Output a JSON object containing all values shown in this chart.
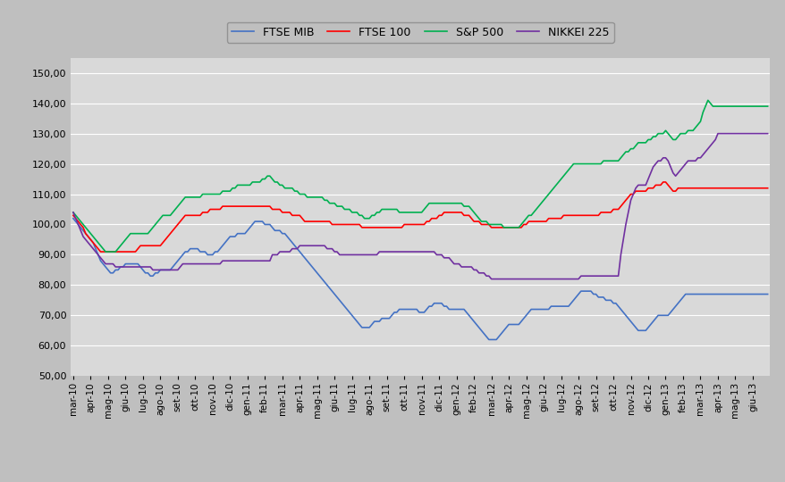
{
  "labels": [
    "mar-10",
    "apr-10",
    "mag-10",
    "giu-10",
    "lug-10",
    "ago-10",
    "set-10",
    "ott-10",
    "nov-10",
    "dic-10",
    "gen-11",
    "feb-11",
    "mar-11",
    "apr-11",
    "mag-11",
    "giu-11",
    "lug-11",
    "ago-11",
    "set-11",
    "ott-11",
    "nov-11",
    "dic-11",
    "gen-12",
    "feb-12",
    "mar-12",
    "apr-12",
    "mag-12",
    "giu-12",
    "lug-12",
    "ago-12",
    "set-12",
    "ott-12",
    "nov-12",
    "dic-12",
    "gen-13",
    "feb-13",
    "mar-13",
    "apr-13",
    "mag-13",
    "giu-13"
  ],
  "ftse_mib": [
    102,
    101,
    100,
    99,
    98,
    97,
    96,
    95,
    94,
    92,
    90,
    88,
    87,
    86,
    85,
    84,
    84,
    85,
    85,
    86,
    86,
    87,
    87,
    87,
    87,
    87,
    87,
    86,
    85,
    84,
    84,
    83,
    83,
    84,
    84,
    85,
    85,
    85,
    85,
    85,
    86,
    87,
    88,
    89,
    90,
    91,
    91,
    92,
    92,
    92,
    92,
    91,
    91,
    91,
    90,
    90,
    90,
    91,
    91,
    92,
    93,
    94,
    95,
    96,
    96,
    96,
    97,
    97,
    97,
    97,
    98,
    99,
    100,
    101,
    101,
    101,
    101,
    100,
    100,
    100,
    99,
    98,
    98,
    98,
    97,
    97,
    96,
    95,
    94,
    93,
    92,
    91,
    90,
    89,
    88,
    87,
    86,
    85,
    84,
    83,
    82,
    81,
    80,
    79,
    78,
    77,
    76,
    75,
    74,
    73,
    72,
    71,
    70,
    69,
    68,
    67,
    66,
    66,
    66,
    66,
    67,
    68,
    68,
    68,
    69,
    69,
    69,
    69,
    70,
    71,
    71,
    72,
    72,
    72,
    72,
    72,
    72,
    72,
    72,
    71,
    71,
    71,
    72,
    73,
    73,
    74,
    74,
    74,
    74,
    73,
    73,
    72,
    72,
    72,
    72,
    72,
    72,
    72,
    71,
    70,
    69,
    68,
    67,
    66,
    65,
    64,
    63,
    62,
    62,
    62,
    62,
    63,
    64,
    65,
    66,
    67,
    67,
    67,
    67,
    67,
    68,
    69,
    70,
    71,
    72,
    72,
    72,
    72,
    72,
    72,
    72,
    72,
    73,
    73,
    73,
    73,
    73,
    73,
    73,
    73,
    74,
    75,
    76,
    77,
    78,
    78,
    78,
    78,
    78,
    77,
    77,
    76,
    76,
    76,
    75,
    75,
    75,
    74,
    74,
    73,
    72,
    71,
    70,
    69,
    68,
    67,
    66,
    65,
    65,
    65,
    65,
    66,
    67,
    68,
    69,
    70,
    70,
    70,
    70,
    70,
    71,
    72,
    73,
    74,
    75,
    76,
    77,
    77,
    77,
    77,
    77,
    77,
    77,
    77,
    77,
    77,
    77,
    77,
    77,
    77
  ],
  "ftse_100": [
    103,
    102,
    101,
    100,
    99,
    97,
    96,
    95,
    94,
    93,
    92,
    91,
    91,
    91,
    91,
    91,
    91,
    91,
    91,
    91,
    91,
    91,
    91,
    91,
    91,
    91,
    92,
    93,
    93,
    93,
    93,
    93,
    93,
    93,
    93,
    93,
    94,
    95,
    96,
    97,
    98,
    99,
    100,
    101,
    102,
    103,
    103,
    103,
    103,
    103,
    103,
    103,
    104,
    104,
    104,
    105,
    105,
    105,
    105,
    105,
    106,
    106,
    106,
    106,
    106,
    106,
    106,
    106,
    106,
    106,
    106,
    106,
    106,
    106,
    106,
    106,
    106,
    106,
    106,
    106,
    105,
    105,
    105,
    105,
    104,
    104,
    104,
    104,
    103,
    103,
    103,
    103,
    102,
    101,
    101,
    101,
    101,
    101,
    101,
    101,
    101,
    101,
    101,
    101,
    100,
    100,
    100,
    100,
    100,
    100,
    100,
    100,
    100,
    100,
    100,
    100,
    99,
    99,
    99,
    99,
    99,
    99,
    99,
    99,
    99,
    99,
    99,
    99,
    99,
    99,
    99,
    99,
    99,
    100,
    100,
    100,
    100,
    100,
    100,
    100,
    100,
    100,
    101,
    101,
    102,
    102,
    102,
    103,
    103,
    104,
    104,
    104,
    104,
    104,
    104,
    104,
    104,
    103,
    103,
    103,
    102,
    101,
    101,
    101,
    100,
    100,
    100,
    100,
    99,
    99,
    99,
    99,
    99,
    99,
    99,
    99,
    99,
    99,
    99,
    99,
    99,
    100,
    100,
    101,
    101,
    101,
    101,
    101,
    101,
    101,
    101,
    102,
    102,
    102,
    102,
    102,
    102,
    103,
    103,
    103,
    103,
    103,
    103,
    103,
    103,
    103,
    103,
    103,
    103,
    103,
    103,
    103,
    104,
    104,
    104,
    104,
    104,
    105,
    105,
    105,
    106,
    107,
    108,
    109,
    110,
    110,
    111,
    111,
    111,
    111,
    111,
    112,
    112,
    112,
    113,
    113,
    113,
    114,
    114,
    113,
    112,
    111,
    111,
    112,
    112,
    112,
    112,
    112,
    112,
    112,
    112,
    112,
    112,
    112,
    112,
    112,
    112,
    112,
    112,
    112
  ],
  "sp500": [
    104,
    103,
    102,
    101,
    100,
    99,
    98,
    97,
    96,
    95,
    94,
    93,
    92,
    91,
    91,
    91,
    91,
    91,
    92,
    93,
    94,
    95,
    96,
    97,
    97,
    97,
    97,
    97,
    97,
    97,
    97,
    98,
    99,
    100,
    101,
    102,
    103,
    103,
    103,
    103,
    104,
    105,
    106,
    107,
    108,
    109,
    109,
    109,
    109,
    109,
    109,
    109,
    110,
    110,
    110,
    110,
    110,
    110,
    110,
    110,
    111,
    111,
    111,
    111,
    112,
    112,
    113,
    113,
    113,
    113,
    113,
    113,
    114,
    114,
    114,
    114,
    115,
    115,
    116,
    116,
    115,
    114,
    114,
    113,
    113,
    112,
    112,
    112,
    112,
    111,
    111,
    110,
    110,
    110,
    109,
    109,
    109,
    109,
    109,
    109,
    109,
    108,
    108,
    107,
    107,
    107,
    106,
    106,
    106,
    105,
    105,
    105,
    104,
    104,
    104,
    103,
    103,
    102,
    102,
    102,
    103,
    103,
    104,
    104,
    105,
    105,
    105,
    105,
    105,
    105,
    105,
    104,
    104,
    104,
    104,
    104,
    104,
    104,
    104,
    104,
    104,
    105,
    106,
    107,
    107,
    107,
    107,
    107,
    107,
    107,
    107,
    107,
    107,
    107,
    107,
    107,
    107,
    106,
    106,
    106,
    105,
    104,
    103,
    102,
    101,
    101,
    101,
    100,
    100,
    100,
    100,
    100,
    100,
    99,
    99,
    99,
    99,
    99,
    99,
    99,
    100,
    101,
    102,
    103,
    103,
    104,
    105,
    106,
    107,
    108,
    109,
    110,
    111,
    112,
    113,
    114,
    115,
    116,
    117,
    118,
    119,
    120,
    120,
    120,
    120,
    120,
    120,
    120,
    120,
    120,
    120,
    120,
    120,
    121,
    121,
    121,
    121,
    121,
    121,
    121,
    122,
    123,
    124,
    124,
    125,
    125,
    126,
    127,
    127,
    127,
    127,
    128,
    128,
    129,
    129,
    130,
    130,
    130,
    131,
    130,
    129,
    128,
    128,
    129,
    130,
    130,
    130,
    131,
    131,
    131,
    132,
    133,
    134,
    137,
    139,
    141,
    140,
    139,
    139,
    139
  ],
  "nikkei": [
    104,
    102,
    100,
    98,
    96,
    95,
    94,
    93,
    92,
    91,
    90,
    89,
    88,
    87,
    87,
    87,
    87,
    86,
    86,
    86,
    86,
    86,
    86,
    86,
    86,
    86,
    86,
    86,
    86,
    86,
    86,
    86,
    85,
    85,
    85,
    85,
    85,
    85,
    85,
    85,
    85,
    85,
    85,
    86,
    87,
    87,
    87,
    87,
    87,
    87,
    87,
    87,
    87,
    87,
    87,
    87,
    87,
    87,
    87,
    87,
    88,
    88,
    88,
    88,
    88,
    88,
    88,
    88,
    88,
    88,
    88,
    88,
    88,
    88,
    88,
    88,
    88,
    88,
    88,
    88,
    90,
    90,
    90,
    91,
    91,
    91,
    91,
    91,
    92,
    92,
    92,
    93,
    93,
    93,
    93,
    93,
    93,
    93,
    93,
    93,
    93,
    93,
    92,
    92,
    92,
    91,
    91,
    90,
    90,
    90,
    90,
    90,
    90,
    90,
    90,
    90,
    90,
    90,
    90,
    90,
    90,
    90,
    90,
    91,
    91,
    91,
    91,
    91,
    91,
    91,
    91,
    91,
    91,
    91,
    91,
    91,
    91,
    91,
    91,
    91,
    91,
    91,
    91,
    91,
    91,
    91,
    90,
    90,
    90,
    89,
    89,
    89,
    88,
    87,
    87,
    87,
    86,
    86,
    86,
    86,
    86,
    85,
    85,
    84,
    84,
    84,
    83,
    83,
    82,
    82,
    82,
    82,
    82,
    82,
    82,
    82,
    82,
    82,
    82,
    82,
    82,
    82,
    82,
    82,
    82,
    82,
    82,
    82,
    82,
    82,
    82,
    82,
    82,
    82,
    82,
    82,
    82,
    82,
    82,
    82,
    82,
    82,
    82,
    82,
    83,
    83,
    83,
    83,
    83,
    83,
    83,
    83,
    83,
    83,
    83,
    83,
    83,
    83,
    83,
    83,
    90,
    95,
    100,
    104,
    108,
    110,
    112,
    113,
    113,
    113,
    113,
    115,
    117,
    119,
    120,
    121,
    121,
    122,
    122,
    121,
    119,
    117,
    116,
    117,
    118,
    119,
    120,
    121,
    121,
    121,
    121,
    122,
    122,
    123,
    124,
    125,
    126,
    127,
    128,
    130
  ],
  "ftse_mib_color": "#4472C4",
  "ftse_100_color": "#FF0000",
  "sp500_color": "#00B050",
  "nikkei_color": "#7030A0",
  "background_color": "#BFBFBF",
  "plot_background_color": "#D9D9D9",
  "legend_labels": [
    "FTSE MIB",
    "FTSE 100",
    "S&P 500",
    "NIKKEI 225"
  ],
  "ylim": [
    50,
    155
  ],
  "yticks": [
    50,
    60,
    70,
    80,
    90,
    100,
    110,
    120,
    130,
    140,
    150
  ],
  "tick_labels_per_month": 7,
  "line_width": 1.2
}
